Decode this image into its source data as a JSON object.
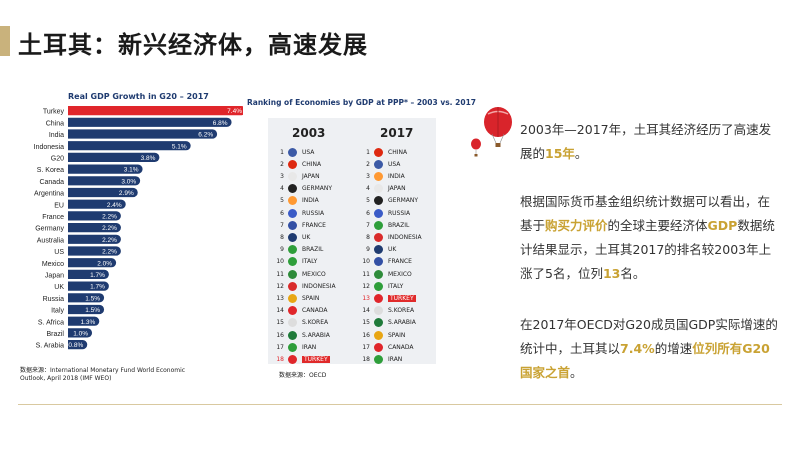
{
  "page": {
    "title": "土耳其：新兴经济体，高速发展"
  },
  "bar_chart": {
    "title": "Real GDP Growth in G20 – 2017",
    "source_line1": "数据来源：International Monetary Fund World Economic",
    "source_line2": "Outlook, April 2018 (IMF WEO)",
    "highlight_color": "#e0262b",
    "bar_color": "#1f3b70"
  },
  "chart_data": {
    "type": "bar",
    "orientation": "horizontal",
    "title": "Real GDP Growth in G20 – 2017",
    "categories": [
      "Turkey",
      "China",
      "India",
      "Indonesia",
      "G20",
      "S. Korea",
      "Canada",
      "Argentina",
      "EU",
      "France",
      "Germany",
      "Australia",
      "US",
      "Mexico",
      "Japan",
      "UK",
      "Russia",
      "Italy",
      "S. Africa",
      "Brazil",
      "S. Arabia"
    ],
    "values": [
      7.4,
      6.8,
      6.2,
      5.1,
      3.8,
      3.1,
      3.0,
      2.9,
      2.4,
      2.2,
      2.2,
      2.2,
      2.2,
      2.0,
      1.7,
      1.7,
      1.5,
      1.5,
      1.3,
      1.0,
      0.8
    ],
    "labels": [
      "7.4%",
      "6.8%",
      "6.2%",
      "5.1%",
      "3.8%",
      "3.1%",
      "3.0%",
      "2.9%",
      "2.4%",
      "2.2%",
      "2.2%",
      "2.2%",
      "2.2%",
      "2.0%",
      "1.7%",
      "1.7%",
      "1.5%",
      "1.5%",
      "1.3%",
      "1.0%",
      "0.8%"
    ],
    "highlight": "Turkey"
  },
  "ranking": {
    "title": "Ranking of Economies by GDP at PPP* – 2003 vs. 2017",
    "year_a": "2003",
    "year_b": "2017",
    "source": "数据来源：OECD",
    "rows_2003": [
      {
        "rank": "1",
        "name": "USA",
        "flag": "#3c5aa6"
      },
      {
        "rank": "2",
        "name": "CHINA",
        "flag": "#de2910"
      },
      {
        "rank": "3",
        "name": "JAPAN",
        "flag": "#e8e8e8"
      },
      {
        "rank": "4",
        "name": "GERMANY",
        "flag": "#222222"
      },
      {
        "rank": "5",
        "name": "INDIA",
        "flag": "#ff9933"
      },
      {
        "rank": "6",
        "name": "RUSSIA",
        "flag": "#3a5bc7"
      },
      {
        "rank": "7",
        "name": "FRANCE",
        "flag": "#3350a5"
      },
      {
        "rank": "8",
        "name": "UK",
        "flag": "#1f3b70"
      },
      {
        "rank": "9",
        "name": "BRAZIL",
        "flag": "#2e9e3a"
      },
      {
        "rank": "10",
        "name": "ITALY",
        "flag": "#2e9e3a"
      },
      {
        "rank": "11",
        "name": "MEXICO",
        "flag": "#2e8b3a"
      },
      {
        "rank": "12",
        "name": "INDONESIA",
        "flag": "#d92b2b"
      },
      {
        "rank": "13",
        "name": "SPAIN",
        "flag": "#e8a614"
      },
      {
        "rank": "14",
        "name": "CANADA",
        "flag": "#e0262b"
      },
      {
        "rank": "15",
        "name": "S.KOREA",
        "flag": "#dddddd"
      },
      {
        "rank": "16",
        "name": "S.ARABIA",
        "flag": "#1f7a3a"
      },
      {
        "rank": "17",
        "name": "IRAN",
        "flag": "#2e9e3a"
      },
      {
        "rank": "18",
        "name": "TURKEY",
        "flag": "#e0262b"
      }
    ],
    "rows_2017": [
      {
        "rank": "1",
        "name": "CHINA",
        "flag": "#de2910"
      },
      {
        "rank": "2",
        "name": "USA",
        "flag": "#3c5aa6"
      },
      {
        "rank": "3",
        "name": "INDIA",
        "flag": "#ff9933"
      },
      {
        "rank": "4",
        "name": "JAPAN",
        "flag": "#e8e8e8"
      },
      {
        "rank": "5",
        "name": "GERMANY",
        "flag": "#222222"
      },
      {
        "rank": "6",
        "name": "RUSSIA",
        "flag": "#3a5bc7"
      },
      {
        "rank": "7",
        "name": "BRAZIL",
        "flag": "#2e9e3a"
      },
      {
        "rank": "8",
        "name": "INDONESIA",
        "flag": "#d92b2b"
      },
      {
        "rank": "9",
        "name": "UK",
        "flag": "#1f3b70"
      },
      {
        "rank": "10",
        "name": "FRANCE",
        "flag": "#3350a5"
      },
      {
        "rank": "11",
        "name": "MEXICO",
        "flag": "#2e8b3a"
      },
      {
        "rank": "12",
        "name": "ITALY",
        "flag": "#2e9e3a"
      },
      {
        "rank": "13",
        "name": "TURKEY",
        "flag": "#e0262b"
      },
      {
        "rank": "14",
        "name": "S.KOREA",
        "flag": "#dddddd"
      },
      {
        "rank": "15",
        "name": "S.ARABIA",
        "flag": "#1f7a3a"
      },
      {
        "rank": "16",
        "name": "SPAIN",
        "flag": "#e8a614"
      },
      {
        "rank": "17",
        "name": "CANADA",
        "flag": "#e0262b"
      },
      {
        "rank": "18",
        "name": "IRAN",
        "flag": "#2e9e3a"
      }
    ],
    "highlight": "TURKEY"
  },
  "text": {
    "p1_a": "2003年—2017年，土耳其经济经历了高速发展的",
    "p1_hl": "15年",
    "p1_b": "。",
    "p2_a": "根据国际货币基金组织统计数据可以看出，在基于",
    "p2_hl1": "购买力评价",
    "p2_b": "的全球主要经济体",
    "p2_hl2": "GDP",
    "p2_c": "数据统计结果显示，土耳其2017的排名较2003年上涨了5名，位列",
    "p2_hl3": "13",
    "p2_d": "名。",
    "p3_a": "在2017年OECD对G20成员国GDP实际增速的统计中，土耳其以",
    "p3_hl1": "7.4%",
    "p3_b": "的增速",
    "p3_hl2": "位列所有G20国家之首",
    "p3_c": "。"
  },
  "colors": {
    "accent_gold": "#c9a233",
    "title_bar": "#c9b27c",
    "turkey_red": "#e0262b",
    "navy": "#1f3b70"
  }
}
